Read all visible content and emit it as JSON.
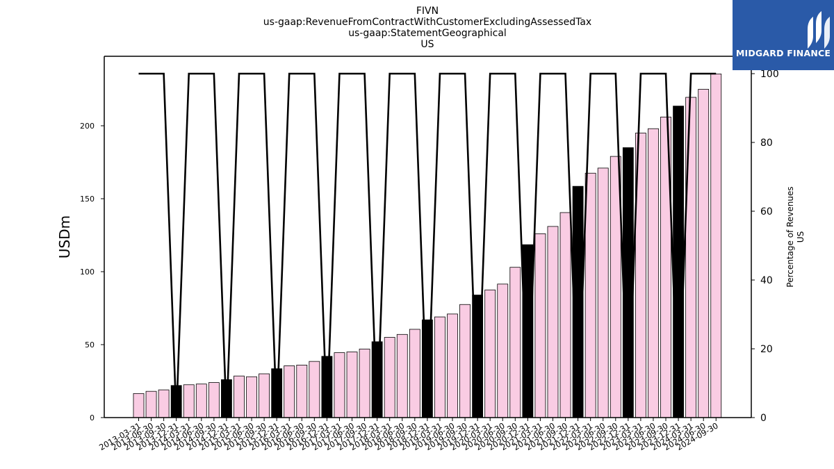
{
  "titles": [
    "FIVN",
    "us-gaap:RevenueFromContractWithCustomerExcludingAssessedTax",
    "us-gaap:StatementGeographical",
    "US"
  ],
  "logo": {
    "text": "MIDGARD FINANCE",
    "color": "#2a5aa8"
  },
  "chart_data": {
    "type": "bar",
    "title": "FIVN us-gaap:RevenueFromContractWithCustomerExcludingAssessedTax us-gaap:StatementGeographical US",
    "ylabel": "USDm",
    "y2label": [
      "Percentage of Revenues",
      "US"
    ],
    "ylim": [
      0,
      245
    ],
    "y2lim": [
      0,
      100
    ],
    "yticks": [
      0,
      50,
      100,
      150,
      200
    ],
    "y2ticks": [
      0,
      20,
      40,
      60,
      80,
      100
    ],
    "colors": {
      "quarter_bar": "#f9cce3",
      "annual_bar": "#000000",
      "line": "#000000"
    },
    "categories": [
      "2013-03-31",
      "2013-06-30",
      "2013-09-30",
      "2013-12-31",
      "2014-03-31",
      "2014-06-30",
      "2014-09-30",
      "2014-12-31",
      "2015-03-31",
      "2015-06-30",
      "2015-09-30",
      "2015-12-31",
      "2016-03-31",
      "2016-06-30",
      "2016-09-30",
      "2016-12-31",
      "2017-03-31",
      "2017-06-30",
      "2017-09-30",
      "2017-12-31",
      "2018-03-31",
      "2018-06-30",
      "2018-09-30",
      "2018-12-31",
      "2019-03-31",
      "2019-06-30",
      "2019-09-30",
      "2019-12-31",
      "2020-03-31",
      "2020-06-30",
      "2020-09-30",
      "2020-12-31",
      "2021-03-31",
      "2021-06-30",
      "2021-09-30",
      "2021-12-31",
      "2022-03-31",
      "2022-06-30",
      "2022-09-30",
      "2022-12-31",
      "2023-03-31",
      "2023-06-30",
      "2023-09-30",
      "2023-12-31",
      "2024-03-31",
      "2024-06-30",
      "2024-09-30"
    ],
    "series": [
      {
        "values": [
          16.5,
          18,
          19,
          22,
          22.5,
          23,
          24,
          26,
          28.5,
          28,
          30,
          33.5,
          35.5,
          36,
          38.5,
          42,
          44.5,
          45,
          47,
          52,
          55,
          57,
          60.5,
          67,
          69,
          71,
          77.5,
          84,
          87.5,
          91.5,
          103,
          118.5,
          126,
          131,
          140.5,
          158.5,
          167.5,
          171,
          179,
          185,
          195,
          198,
          206,
          213.5,
          219.5,
          225,
          235.5
        ],
        "annual": [
          false,
          false,
          false,
          true,
          false,
          false,
          false,
          true,
          false,
          false,
          false,
          true,
          false,
          false,
          false,
          true,
          false,
          false,
          false,
          true,
          false,
          false,
          false,
          true,
          false,
          false,
          false,
          true,
          false,
          false,
          false,
          true,
          false,
          false,
          false,
          true,
          false,
          false,
          false,
          true,
          false,
          false,
          false,
          true,
          false,
          false,
          false
        ]
      },
      {
        "axis": "right",
        "values": [
          100,
          100,
          100,
          0,
          100,
          100,
          100,
          0,
          100,
          100,
          100,
          0,
          100,
          100,
          100,
          0,
          100,
          100,
          100,
          0,
          100,
          100,
          100,
          0,
          100,
          100,
          100,
          0,
          100,
          100,
          100,
          0,
          100,
          100,
          100,
          0,
          100,
          100,
          100,
          0,
          100,
          100,
          100,
          0,
          100,
          100,
          100
        ]
      }
    ]
  }
}
